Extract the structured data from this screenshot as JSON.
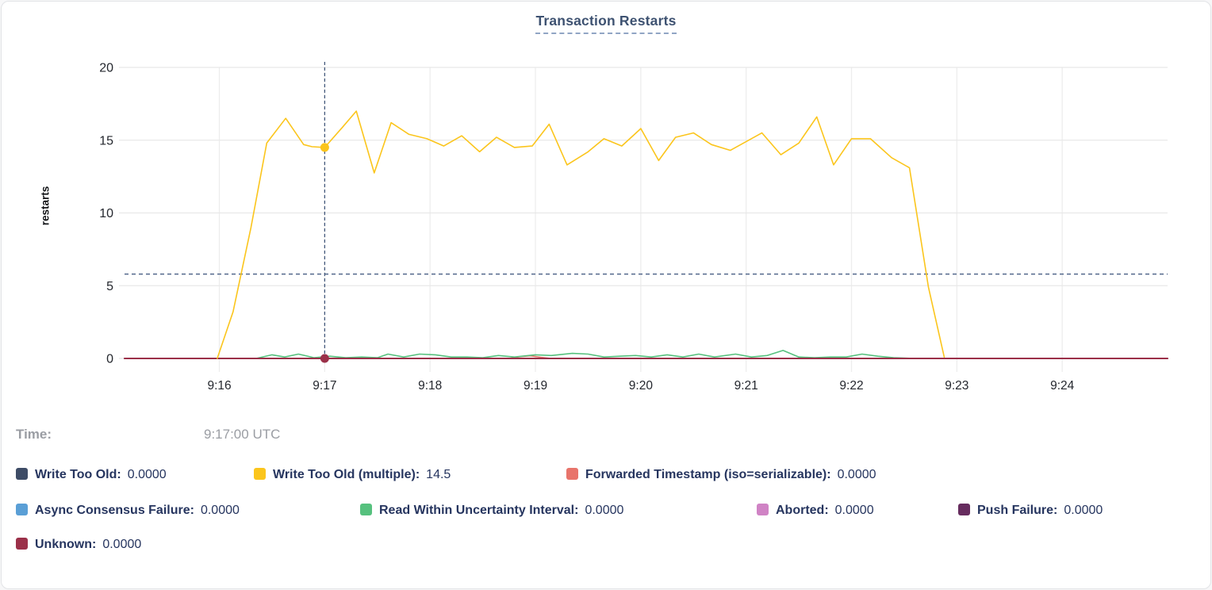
{
  "title": "Transaction Restarts",
  "tooltip": {
    "time_label": "Time:",
    "time_value": "9:17:00 UTC"
  },
  "chart_data": {
    "type": "line",
    "title": "Transaction Restarts",
    "xlabel": "",
    "ylabel": "restarts",
    "ylim": [
      0,
      20
    ],
    "y_ticks": [
      0,
      5,
      10,
      15,
      20
    ],
    "x_ticks": [
      {
        "label": "9:16",
        "minute": 16
      },
      {
        "label": "9:17",
        "minute": 17
      },
      {
        "label": "9:18",
        "minute": 18
      },
      {
        "label": "9:19",
        "minute": 19
      },
      {
        "label": "9:20",
        "minute": 20
      },
      {
        "label": "9:21",
        "minute": 21
      },
      {
        "label": "9:22",
        "minute": 22
      },
      {
        "label": "9:23",
        "minute": 23
      },
      {
        "label": "9:24",
        "minute": 24
      }
    ],
    "x_domain_minutes": [
      15.1,
      25.0
    ],
    "grid": true,
    "legend_position": "bottom",
    "guide_lines": {
      "horizontal_value": 5.8,
      "vertical_minute": 17,
      "color": "#53688c"
    },
    "hover": {
      "time": "9:17:00 UTC",
      "time_minute": 17,
      "dots": [
        {
          "series": "Write Too Old (multiple)",
          "value": 14.5
        },
        {
          "series": "Unknown",
          "value": 0
        }
      ]
    },
    "series": [
      {
        "name": "Write Too Old",
        "color": "#3e4c66",
        "value_at_cursor": "0.0000",
        "points": [
          [
            15.1,
            0
          ],
          [
            25.0,
            0
          ]
        ]
      },
      {
        "name": "Write Too Old (multiple)",
        "color": "#fbc51c",
        "value_at_cursor": "14.5",
        "points": [
          [
            15.98,
            0
          ],
          [
            16.13,
            3.2
          ],
          [
            16.3,
            9.0
          ],
          [
            16.45,
            14.8
          ],
          [
            16.63,
            16.5
          ],
          [
            16.8,
            14.7
          ],
          [
            16.88,
            14.55
          ],
          [
            17.0,
            14.5
          ],
          [
            17.17,
            15.9
          ],
          [
            17.3,
            17.0
          ],
          [
            17.47,
            12.75
          ],
          [
            17.63,
            16.2
          ],
          [
            17.8,
            15.4
          ],
          [
            17.97,
            15.1
          ],
          [
            18.13,
            14.6
          ],
          [
            18.3,
            15.3
          ],
          [
            18.47,
            14.2
          ],
          [
            18.63,
            15.2
          ],
          [
            18.8,
            14.5
          ],
          [
            18.97,
            14.6
          ],
          [
            19.13,
            16.1
          ],
          [
            19.3,
            13.3
          ],
          [
            19.5,
            14.2
          ],
          [
            19.65,
            15.1
          ],
          [
            19.82,
            14.6
          ],
          [
            20.0,
            15.8
          ],
          [
            20.17,
            13.6
          ],
          [
            20.33,
            15.2
          ],
          [
            20.5,
            15.5
          ],
          [
            20.67,
            14.7
          ],
          [
            20.85,
            14.3
          ],
          [
            21.0,
            14.9
          ],
          [
            21.15,
            15.5
          ],
          [
            21.33,
            14.0
          ],
          [
            21.5,
            14.8
          ],
          [
            21.67,
            16.6
          ],
          [
            21.83,
            13.3
          ],
          [
            22.0,
            15.1
          ],
          [
            22.18,
            15.1
          ],
          [
            22.38,
            13.8
          ],
          [
            22.55,
            13.1
          ],
          [
            22.73,
            4.9
          ],
          [
            22.88,
            0.1
          ]
        ]
      },
      {
        "name": "Forwarded Timestamp (iso=serializable)",
        "color": "#e8746b",
        "value_at_cursor": "0.0000",
        "points": [
          [
            15.1,
            0
          ],
          [
            18.75,
            0
          ],
          [
            18.85,
            0.12
          ],
          [
            18.95,
            0.18
          ],
          [
            19.05,
            0.08
          ],
          [
            19.15,
            0
          ],
          [
            25.0,
            0
          ]
        ]
      },
      {
        "name": "Async Consensus Failure",
        "color": "#5a9fd6",
        "value_at_cursor": "0.0000",
        "points": [
          [
            15.1,
            0
          ],
          [
            25.0,
            0
          ]
        ]
      },
      {
        "name": "Read Within Uncertainty Interval",
        "color": "#56c17e",
        "value_at_cursor": "0.0000",
        "points": [
          [
            15.1,
            0
          ],
          [
            16.35,
            0
          ],
          [
            16.5,
            0.25
          ],
          [
            16.62,
            0.1
          ],
          [
            16.75,
            0.3
          ],
          [
            16.9,
            0.05
          ],
          [
            17.05,
            0.15
          ],
          [
            17.2,
            0.05
          ],
          [
            17.35,
            0.1
          ],
          [
            17.5,
            0.05
          ],
          [
            17.6,
            0.3
          ],
          [
            17.75,
            0.1
          ],
          [
            17.9,
            0.3
          ],
          [
            18.05,
            0.25
          ],
          [
            18.2,
            0.1
          ],
          [
            18.35,
            0.1
          ],
          [
            18.5,
            0.05
          ],
          [
            18.65,
            0.2
          ],
          [
            18.8,
            0.1
          ],
          [
            19.0,
            0.25
          ],
          [
            19.15,
            0.2
          ],
          [
            19.35,
            0.35
          ],
          [
            19.5,
            0.3
          ],
          [
            19.65,
            0.1
          ],
          [
            19.8,
            0.15
          ],
          [
            19.95,
            0.2
          ],
          [
            20.1,
            0.1
          ],
          [
            20.25,
            0.25
          ],
          [
            20.4,
            0.1
          ],
          [
            20.55,
            0.3
          ],
          [
            20.7,
            0.1
          ],
          [
            20.9,
            0.3
          ],
          [
            21.05,
            0.1
          ],
          [
            21.2,
            0.2
          ],
          [
            21.35,
            0.55
          ],
          [
            21.5,
            0.1
          ],
          [
            21.65,
            0.05
          ],
          [
            21.8,
            0.1
          ],
          [
            21.95,
            0.1
          ],
          [
            22.1,
            0.3
          ],
          [
            22.25,
            0.15
          ],
          [
            22.4,
            0.05
          ],
          [
            22.6,
            0
          ],
          [
            25.0,
            0
          ]
        ]
      },
      {
        "name": "Aborted",
        "color": "#d083c5",
        "value_at_cursor": "0.0000",
        "points": [
          [
            15.1,
            0
          ],
          [
            25.0,
            0
          ]
        ]
      },
      {
        "name": "Push Failure",
        "color": "#662c5e",
        "value_at_cursor": "0.0000",
        "points": [
          [
            15.1,
            0
          ],
          [
            25.0,
            0
          ]
        ]
      },
      {
        "name": "Unknown",
        "color": "#9b3049",
        "value_at_cursor": "0.0000",
        "stroke_width": 2,
        "points": [
          [
            15.1,
            0
          ],
          [
            25.0,
            0
          ]
        ]
      }
    ]
  }
}
